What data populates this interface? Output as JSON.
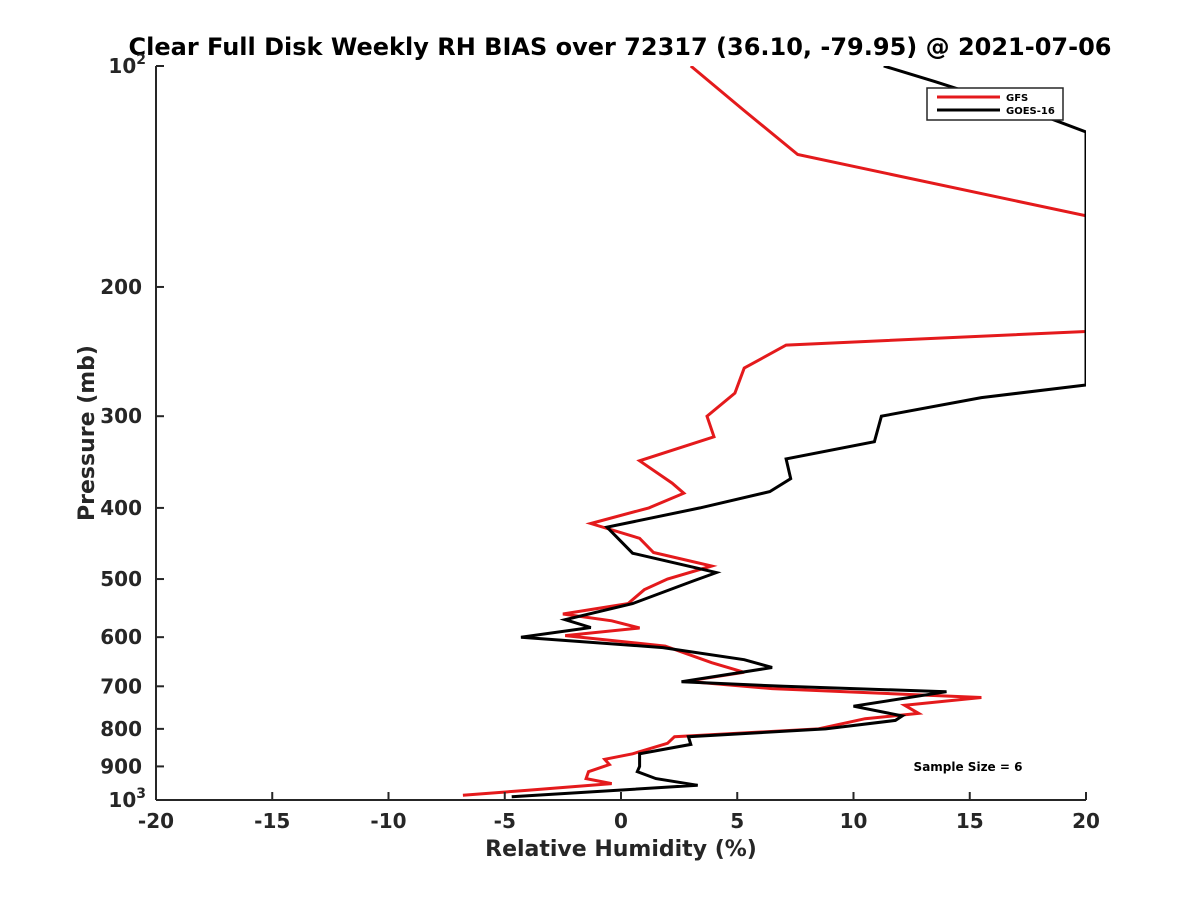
{
  "chart_data": {
    "type": "line",
    "title": "Clear Full Disk Weekly RH BIAS over 72317 (36.10, -79.95) @ 2021-07-06",
    "xlabel": "Relative Humidity (%)",
    "ylabel": "Pressure (mb)",
    "xlim": [
      -20,
      20
    ],
    "ylim": [
      100,
      1000
    ],
    "y_scale": "log",
    "y_reversed": true,
    "grid": false,
    "legend_position": "top-right",
    "annotation": "Sample Size = 6",
    "x_ticks": [
      {
        "value": -20,
        "label": "-20"
      },
      {
        "value": -15,
        "label": "-15"
      },
      {
        "value": -10,
        "label": "-10"
      },
      {
        "value": -5,
        "label": "-5"
      },
      {
        "value": 0,
        "label": "0"
      },
      {
        "value": 5,
        "label": "5"
      },
      {
        "value": 10,
        "label": "10"
      },
      {
        "value": 15,
        "label": "15"
      },
      {
        "value": 20,
        "label": "20"
      }
    ],
    "y_ticks": [
      {
        "value": 100,
        "label": "10",
        "sup": "2"
      },
      {
        "value": 200,
        "label": "200"
      },
      {
        "value": 300,
        "label": "300"
      },
      {
        "value": 400,
        "label": "400"
      },
      {
        "value": 500,
        "label": "500"
      },
      {
        "value": 600,
        "label": "600"
      },
      {
        "value": 700,
        "label": "700"
      },
      {
        "value": 800,
        "label": "800"
      },
      {
        "value": 900,
        "label": "900"
      },
      {
        "value": 1000,
        "label": "10",
        "sup": "3"
      }
    ],
    "series": [
      {
        "name": "GFS",
        "color": "#e41a1c",
        "points": [
          [
            3.0,
            100
          ],
          [
            5.3,
            115
          ],
          [
            7.6,
            132
          ],
          [
            20.0,
            160
          ],
          [
            20.0,
            230
          ],
          [
            7.1,
            240
          ],
          [
            5.3,
            258
          ],
          [
            4.9,
            279
          ],
          [
            3.7,
            300
          ],
          [
            4.0,
            320
          ],
          [
            0.8,
            345
          ],
          [
            2.2,
            370
          ],
          [
            2.7,
            382
          ],
          [
            1.2,
            400
          ],
          [
            -1.3,
            420
          ],
          [
            0.8,
            440
          ],
          [
            1.4,
            460
          ],
          [
            3.9,
            480
          ],
          [
            2.0,
            500
          ],
          [
            1.0,
            517
          ],
          [
            0.3,
            540
          ],
          [
            -2.5,
            558
          ],
          [
            -0.4,
            570
          ],
          [
            0.8,
            583
          ],
          [
            -2.4,
            597
          ],
          [
            1.9,
            617
          ],
          [
            3.9,
            650
          ],
          [
            5.3,
            670
          ],
          [
            2.8,
            689
          ],
          [
            6.5,
            705
          ],
          [
            15.5,
            725
          ],
          [
            12.2,
            743
          ],
          [
            12.8,
            762
          ],
          [
            10.5,
            775
          ],
          [
            8.5,
            800
          ],
          [
            2.3,
            820
          ],
          [
            2.0,
            837
          ],
          [
            0.5,
            865
          ],
          [
            -0.7,
            880
          ],
          [
            -0.5,
            895
          ],
          [
            -1.4,
            915
          ],
          [
            -1.5,
            935
          ],
          [
            -0.4,
            950
          ],
          [
            -4.0,
            970
          ],
          [
            -6.8,
            985
          ]
        ]
      },
      {
        "name": "GOES-16",
        "color": "#000000",
        "points": [
          [
            11.3,
            100
          ],
          [
            13.5,
            105
          ],
          [
            18.5,
            118
          ],
          [
            20.0,
            123
          ],
          [
            20.0,
            272
          ],
          [
            15.5,
            283
          ],
          [
            11.2,
            300
          ],
          [
            10.9,
            325
          ],
          [
            7.1,
            343
          ],
          [
            7.3,
            365
          ],
          [
            6.4,
            380
          ],
          [
            3.4,
            400
          ],
          [
            -0.6,
            425
          ],
          [
            0.5,
            461
          ],
          [
            4.1,
            490
          ],
          [
            3.1,
            503
          ],
          [
            0.5,
            540
          ],
          [
            -2.4,
            568
          ],
          [
            -1.3,
            582
          ],
          [
            -4.3,
            600
          ],
          [
            1.8,
            620
          ],
          [
            5.3,
            644
          ],
          [
            6.5,
            660
          ],
          [
            2.6,
            690
          ],
          [
            7.0,
            700
          ],
          [
            14.0,
            712
          ],
          [
            10.0,
            745
          ],
          [
            12.1,
            768
          ],
          [
            11.8,
            779
          ],
          [
            8.8,
            800
          ],
          [
            2.9,
            820
          ],
          [
            3.0,
            840
          ],
          [
            0.8,
            865
          ],
          [
            0.8,
            900
          ],
          [
            0.7,
            915
          ],
          [
            1.5,
            935
          ],
          [
            3.3,
            955
          ],
          [
            -4.7,
            990
          ]
        ]
      }
    ]
  }
}
